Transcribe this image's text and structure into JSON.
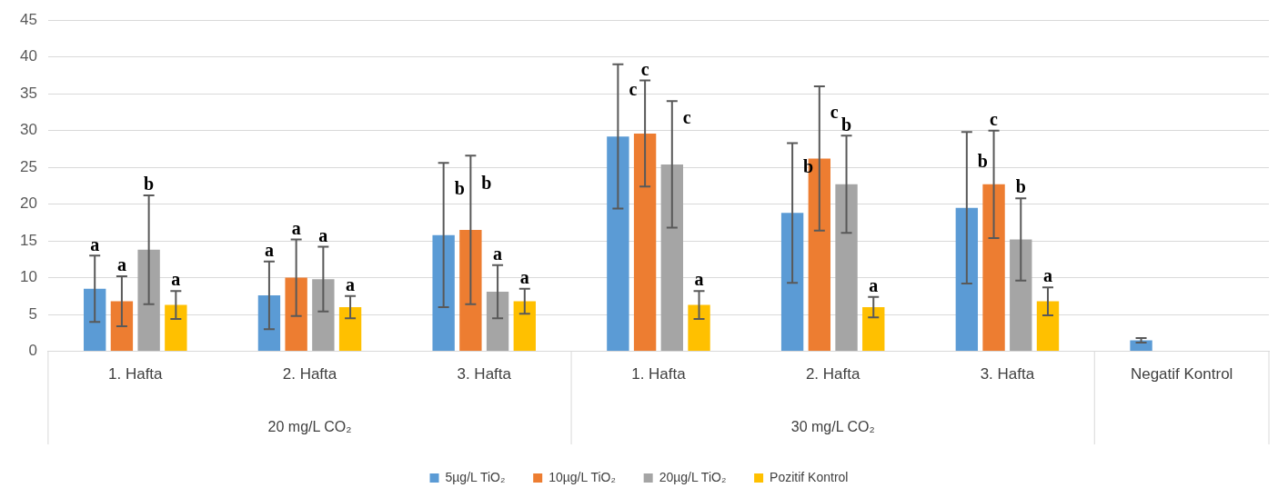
{
  "chart_data": {
    "type": "bar",
    "categories": [
      "1. Hafta",
      "2. Hafta",
      "3. Hafta",
      "1. Hafta",
      "2. Hafta",
      "3. Hafta",
      "Negatif Kontrol"
    ],
    "series": [
      {
        "name": "5µg/L TiO₂",
        "color": "#5b9bd5",
        "values": [
          8.5,
          7.6,
          15.8,
          29.2,
          18.8,
          19.5,
          1.5
        ],
        "errors": [
          4.5,
          4.6,
          9.8,
          9.8,
          9.5,
          10.3,
          0.3
        ],
        "value_labels": [
          "a",
          "a",
          "b",
          "c",
          "b",
          "b",
          null
        ]
      },
      {
        "name": "10µg/L TiO₂",
        "color": "#ed7d31",
        "values": [
          6.8,
          10.0,
          16.5,
          29.6,
          26.2,
          22.7,
          null
        ],
        "errors": [
          3.4,
          5.2,
          10.1,
          7.2,
          9.8,
          7.3,
          null
        ],
        "value_labels": [
          "a",
          "a",
          "b",
          "c",
          "c",
          "c",
          null
        ]
      },
      {
        "name": "20µg/L TiO₂",
        "color": "#a5a5a5",
        "values": [
          13.8,
          9.8,
          8.1,
          25.4,
          22.7,
          15.2,
          null
        ],
        "errors": [
          7.4,
          4.4,
          3.6,
          8.6,
          6.6,
          5.6,
          null
        ],
        "value_labels": [
          "b",
          "a",
          "a",
          "c",
          "b",
          "b",
          null
        ]
      },
      {
        "name": "Pozitif Kontrol",
        "color": "#ffc000",
        "values": [
          6.3,
          6.0,
          6.8,
          6.3,
          6.0,
          6.8,
          null
        ],
        "errors": [
          1.9,
          1.5,
          1.7,
          1.9,
          1.4,
          1.9,
          null
        ],
        "value_labels": [
          "a",
          "a",
          "a",
          "a",
          "a",
          "a",
          null
        ]
      }
    ],
    "annotations": [
      "20 mg/L CO₂",
      "30 mg/L CO₂"
    ],
    "ylim": [
      0,
      45
    ],
    "yticks": [
      0,
      5,
      10,
      15,
      20,
      25,
      30,
      35,
      40,
      45
    ],
    "grid": "y",
    "legend": "bottom"
  }
}
